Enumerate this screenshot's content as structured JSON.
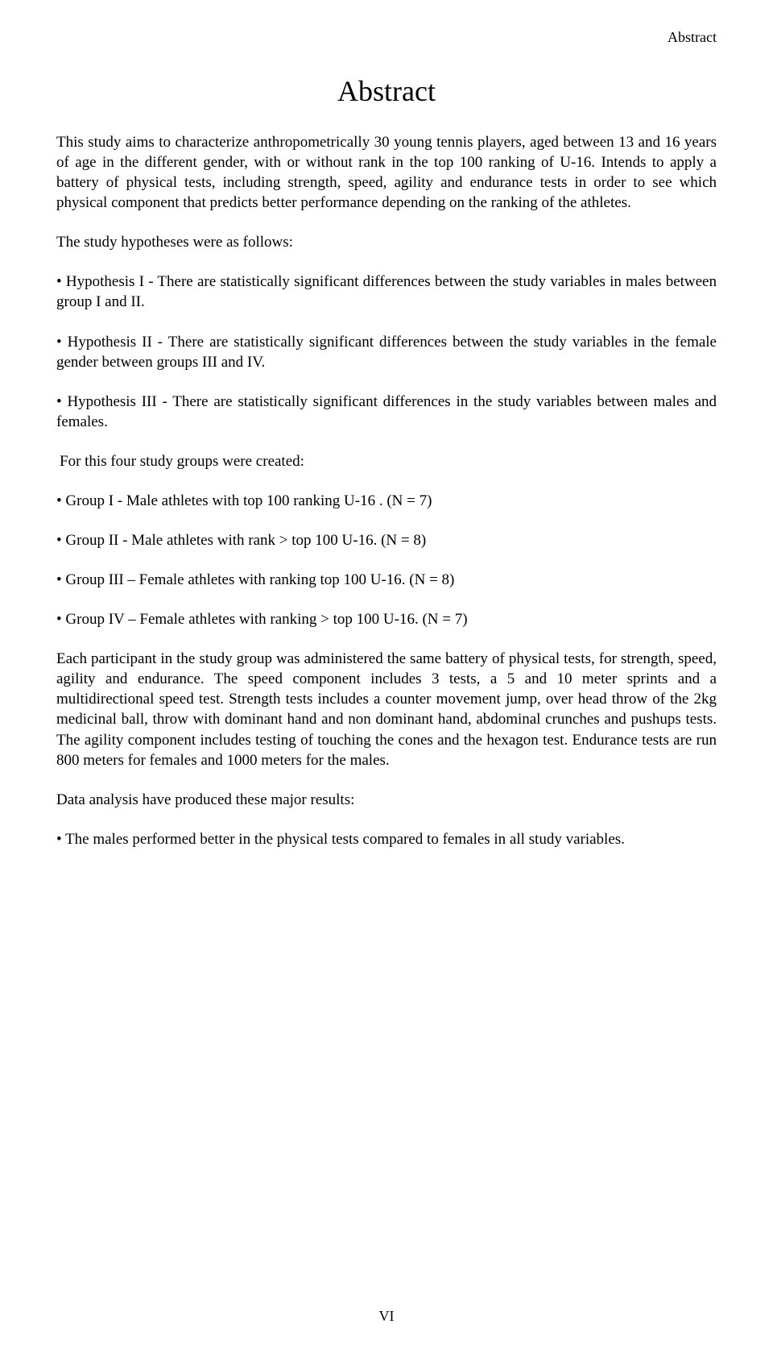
{
  "page": {
    "running_head": "Abstract",
    "title": "Abstract",
    "page_number": "VI",
    "font_family": "Times New Roman, serif",
    "font_size_body_pt": 14,
    "font_size_title_pt": 28,
    "text_color": "#000000",
    "background_color": "#ffffff"
  },
  "paragraphs": {
    "intro": "This study aims to characterize anthropometrically 30 young tennis players, aged between 13 and 16 years of age in the different gender, with or without rank in the top 100 ranking of U-16. Intends to apply a battery of physical tests, including strength, speed, agility and endurance tests in order to see which physical component that predicts better performance depending on the ranking of the athletes.",
    "hyp_lead": "The study hypotheses were as follows:",
    "hyp1": "• Hypothesis I - There are statistically significant differences between the study variables in males between group I and II.",
    "hyp2": "• Hypothesis II - There are statistically significant differences between the study variables in the female gender between groups III and IV.",
    "hyp3": "• Hypothesis III - There are statistically significant differences in the study variables between males and females.",
    "groups_lead": " For this four study groups were created:",
    "grp1": "• Group I - Male athletes with top 100 ranking U-16 . (N = 7)",
    "grp2": "• Group II - Male athletes with rank > top 100 U-16. (N = 8)",
    "grp3": "• Group III – Female athletes with ranking top 100 U-16. (N = 8)",
    "grp4": "• Group IV – Female athletes with ranking > top 100 U-16. (N = 7)",
    "methods": "Each participant in the study group was administered the same battery of physical tests, for strength, speed, agility and endurance. The speed component includes 3 tests, a 5 and 10 meter sprints and a multidirectional speed test. Strength tests includes  a counter movement jump, over head throw  of the 2kg medicinal ball, throw with dominant hand and non dominant hand, abdominal crunches and pushups tests. The agility component includes testing of touching the cones and the hexagon test. Endurance tests are run 800 meters for females and 1000 meters for the males.",
    "results_lead": "Data analysis have produced these major results:",
    "res1": "• The males performed better in the physical tests compared to females in all study variables."
  }
}
